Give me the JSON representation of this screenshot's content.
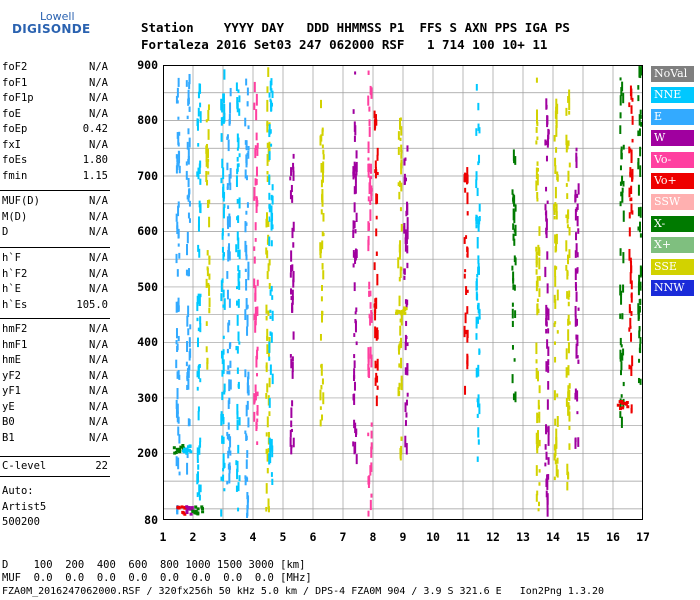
{
  "logo": {
    "brand_top": "Lowell",
    "brand_main": "DIGISONDE"
  },
  "header": {
    "line1": "Station    YYYY DAY   DDD HHMMSS P1  FFS S AXN PPS IGA PS",
    "line2": "Fortaleza 2016 Set03 247 062000 RSF   1 714 100 10+ 11"
  },
  "parameters": {
    "group1": [
      {
        "label": "foF2",
        "value": "N/A"
      },
      {
        "label": "foF1",
        "value": "N/A"
      },
      {
        "label": "foF1p",
        "value": "N/A"
      },
      {
        "label": "foE",
        "value": "N/A"
      },
      {
        "label": "foEp",
        "value": "0.42"
      },
      {
        "label": "fxI",
        "value": "N/A"
      },
      {
        "label": "foEs",
        "value": "1.80"
      },
      {
        "label": "fmin",
        "value": "1.15"
      }
    ],
    "group2": [
      {
        "label": "MUF(D)",
        "value": "N/A"
      },
      {
        "label": "M(D)",
        "value": "N/A"
      },
      {
        "label": "D",
        "value": "N/A"
      }
    ],
    "group3": [
      {
        "label": "h`F",
        "value": "N/A"
      },
      {
        "label": "h`F2",
        "value": "N/A"
      },
      {
        "label": "h`E",
        "value": "N/A"
      },
      {
        "label": "h`Es",
        "value": "105.0"
      }
    ],
    "group4": [
      {
        "label": "hmF2",
        "value": "N/A"
      },
      {
        "label": "hmF1",
        "value": "N/A"
      },
      {
        "label": "hmE",
        "value": "N/A"
      },
      {
        "label": "yF2",
        "value": "N/A"
      },
      {
        "label": "yF1",
        "value": "N/A"
      },
      {
        "label": "yE",
        "value": "N/A"
      },
      {
        "label": "B0",
        "value": "N/A"
      },
      {
        "label": "B1",
        "value": "N/A"
      }
    ],
    "group5": [
      {
        "label": "C-level",
        "value": "22"
      }
    ]
  },
  "scaler": {
    "line1": "Auto:",
    "line2": "Artist5",
    "line3": "500200"
  },
  "legend": [
    {
      "label": "NoVal",
      "color": "#7f7f7f"
    },
    {
      "label": "NNE",
      "color": "#00c8ff"
    },
    {
      "label": "E",
      "color": "#33aaff"
    },
    {
      "label": "W",
      "color": "#a0009f"
    },
    {
      "label": "Vo-",
      "color": "#ff3fa0"
    },
    {
      "label": "Vo+",
      "color": "#ee0000"
    },
    {
      "label": "SSW",
      "color": "#ffb0b0"
    },
    {
      "label": "X-",
      "color": "#007a00"
    },
    {
      "label": "X+",
      "color": "#7fbf7f"
    },
    {
      "label": "SSE",
      "color": "#d2d200"
    },
    {
      "label": "NNW",
      "color": "#1a2bd9"
    }
  ],
  "bottom": {
    "d_row": "D    100  200  400  600  800 1000 1500 3000 [km]",
    "muf_row": "MUF  0.0  0.0  0.0  0.0  0.0  0.0  0.0  0.0 [MHz]",
    "footer": "FZA0M_2016247062000.RSF / 320fx256h 50 kHz 5.0 km / DPS-4 FZA0M 904 / 3.9 S 321.6 E   Ion2Png 1.3.20"
  },
  "chart_data": {
    "type": "scatter",
    "title": "",
    "xlabel": "",
    "ylabel": "",
    "x_ticks": [
      1,
      2,
      3,
      4,
      5,
      6,
      7,
      8,
      9,
      10,
      11,
      12,
      13,
      14,
      15,
      16,
      17
    ],
    "y_ticks": [
      80,
      200,
      300,
      400,
      500,
      600,
      700,
      800,
      900
    ],
    "xlim": [
      1,
      17
    ],
    "ylim": [
      80,
      900
    ],
    "grid": true,
    "traces": [
      {
        "x": 1.5,
        "y": [
          100,
          880
        ],
        "color": "#33aaff"
      },
      {
        "x": 1.85,
        "y": [
          180,
          890
        ],
        "color": "#33aaff"
      },
      {
        "x": 2.2,
        "y": [
          120,
          880
        ],
        "color": "#00c8ff"
      },
      {
        "x": 2.5,
        "y": [
          360,
          830
        ],
        "color": "#d2d200"
      },
      {
        "x": 3.0,
        "y": [
          90,
          900
        ],
        "color": "#00c8ff"
      },
      {
        "x": 3.2,
        "y": [
          150,
          880
        ],
        "color": "#33aaff"
      },
      {
        "x": 3.5,
        "y": [
          100,
          890
        ],
        "color": "#00c8ff"
      },
      {
        "x": 3.8,
        "y": [
          90,
          900
        ],
        "color": "#33aaff"
      },
      {
        "x": 4.1,
        "y": [
          180,
          870
        ],
        "color": "#ff3fa0"
      },
      {
        "x": 4.5,
        "y": [
          100,
          900
        ],
        "color": "#d2d200"
      },
      {
        "x": 4.6,
        "y": [
          120,
          880
        ],
        "color": "#00c8ff"
      },
      {
        "x": 5.3,
        "y": [
          200,
          780
        ],
        "color": "#a0009f"
      },
      {
        "x": 6.3,
        "y": [
          260,
          850
        ],
        "color": "#d2d200"
      },
      {
        "x": 7.4,
        "y": [
          180,
          890
        ],
        "color": "#a0009f"
      },
      {
        "x": 7.9,
        "y": [
          90,
          900
        ],
        "color": "#ff3fa0"
      },
      {
        "x": 8.1,
        "y": [
          300,
          820
        ],
        "color": "#ee0000"
      },
      {
        "x": 8.9,
        "y": [
          140,
          820
        ],
        "color": "#d2d200"
      },
      {
        "x": 9.1,
        "y": [
          200,
          780
        ],
        "color": "#a0009f"
      },
      {
        "x": 11.1,
        "y": [
          320,
          720
        ],
        "color": "#ee0000"
      },
      {
        "x": 11.5,
        "y": [
          180,
          880
        ],
        "color": "#00c8ff"
      },
      {
        "x": 12.7,
        "y": [
          300,
          760
        ],
        "color": "#007a00"
      },
      {
        "x": 13.5,
        "y": [
          100,
          880
        ],
        "color": "#d2d200"
      },
      {
        "x": 13.8,
        "y": [
          100,
          870
        ],
        "color": "#a0009f"
      },
      {
        "x": 14.1,
        "y": [
          100,
          850
        ],
        "color": "#d2d200"
      },
      {
        "x": 14.5,
        "y": [
          130,
          860
        ],
        "color": "#d2d200"
      },
      {
        "x": 14.8,
        "y": [
          200,
          780
        ],
        "color": "#a0009f"
      },
      {
        "x": 16.3,
        "y": [
          260,
          880
        ],
        "color": "#007a00"
      },
      {
        "x": 16.6,
        "y": [
          280,
          890
        ],
        "color": "#ee0000"
      },
      {
        "x": 16.9,
        "y": [
          330,
          900
        ],
        "color": "#007a00"
      }
    ],
    "clusters": [
      {
        "x": 1.6,
        "y": 100,
        "color": "#ee0000"
      },
      {
        "x": 1.9,
        "y": 100,
        "color": "#a0009f"
      },
      {
        "x": 2.1,
        "y": 100,
        "color": "#007a00"
      },
      {
        "x": 1.5,
        "y": 210,
        "color": "#007a00"
      },
      {
        "x": 1.8,
        "y": 210,
        "color": "#00c8ff"
      },
      {
        "x": 8.9,
        "y": 460,
        "color": "#d2d200"
      },
      {
        "x": 16.3,
        "y": 290,
        "color": "#ee0000"
      }
    ]
  }
}
